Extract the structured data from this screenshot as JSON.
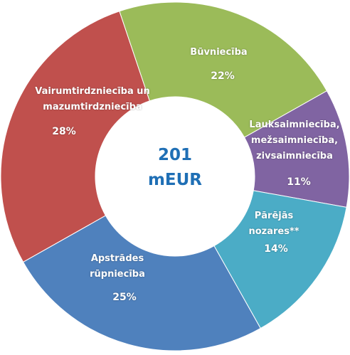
{
  "chart_data": {
    "type": "donut",
    "center_value": "201",
    "center_unit": "mEUR",
    "categories": [
      "Būvniecība",
      "Lauksaimniecība, mežsaimniecība, zivsaimniecība",
      "Pārējās nozares**",
      "Apstrādes rūpniecība",
      "Vairumtirdzniecība un mazumtirdzniecība"
    ],
    "values": [
      22,
      11,
      14,
      25,
      28
    ],
    "value_labels": [
      "22%",
      "11%",
      "14%",
      "25%",
      "28%"
    ],
    "colors": [
      "#9bbb59",
      "#8064a2",
      "#4bacc6",
      "#4f81bd",
      "#c0504d"
    ]
  }
}
